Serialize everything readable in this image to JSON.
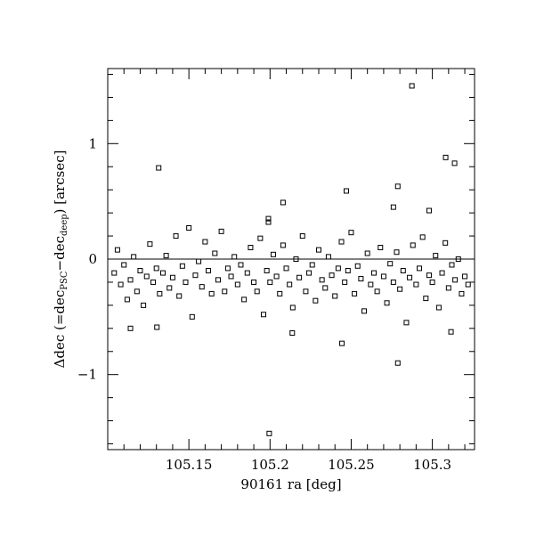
{
  "chart_data": {
    "type": "scatter",
    "xlabel": "90161 ra [deg]",
    "ylabel_parts": [
      "Δdec (=dec",
      "PSC",
      "−dec",
      "deep",
      ") [arcsec]"
    ],
    "xlim": [
      105.1,
      105.326
    ],
    "ylim": [
      -1.65,
      1.65
    ],
    "xticks": [
      105.15,
      105.2,
      105.25,
      105.3
    ],
    "yticks": [
      {
        "value": -1,
        "label": "−1"
      },
      0,
      1
    ],
    "xminorticks": [
      105.11,
      105.12,
      105.13,
      105.14,
      105.16,
      105.17,
      105.18,
      105.19,
      105.21,
      105.22,
      105.23,
      105.24,
      105.26,
      105.27,
      105.28,
      105.29,
      105.31,
      105.32
    ],
    "yminorticks": [
      -1.6,
      -1.4,
      -1.2,
      -0.8,
      -0.6,
      -0.4,
      -0.2,
      0.2,
      0.4,
      0.6,
      0.8,
      1.2,
      1.4,
      1.6
    ],
    "hline": 0,
    "color": "#000000",
    "x": [
      105.2874,
      105.1314,
      105.3082,
      105.3137,
      105.2787,
      105.247,
      105.208,
      105.199,
      105.199,
      105.298,
      105.276,
      105.1995,
      105.2787,
      105.2443,
      105.2137,
      105.3115,
      105.114,
      105.1303,
      105.104,
      105.106,
      105.108,
      105.11,
      105.112,
      105.114,
      105.116,
      105.118,
      105.12,
      105.122,
      105.124,
      105.126,
      105.128,
      105.13,
      105.132,
      105.134,
      105.136,
      105.138,
      105.14,
      105.142,
      105.144,
      105.146,
      105.148,
      105.15,
      105.152,
      105.154,
      105.156,
      105.158,
      105.16,
      105.162,
      105.164,
      105.166,
      105.168,
      105.17,
      105.172,
      105.174,
      105.176,
      105.178,
      105.18,
      105.182,
      105.184,
      105.186,
      105.188,
      105.19,
      105.192,
      105.194,
      105.196,
      105.198,
      105.2,
      105.202,
      105.204,
      105.206,
      105.208,
      105.21,
      105.212,
      105.214,
      105.216,
      105.218,
      105.22,
      105.222,
      105.224,
      105.226,
      105.228,
      105.23,
      105.232,
      105.234,
      105.236,
      105.238,
      105.24,
      105.242,
      105.244,
      105.246,
      105.248,
      105.25,
      105.252,
      105.254,
      105.256,
      105.258,
      105.26,
      105.262,
      105.264,
      105.266,
      105.268,
      105.27,
      105.272,
      105.274,
      105.276,
      105.278,
      105.28,
      105.282,
      105.284,
      105.286,
      105.288,
      105.29,
      105.292,
      105.294,
      105.296,
      105.298,
      105.3,
      105.302,
      105.304,
      105.306,
      105.308,
      105.31,
      105.312,
      105.314,
      105.316,
      105.318,
      105.32,
      105.322
    ],
    "values": [
      1.5,
      0.79,
      0.88,
      0.83,
      0.63,
      0.59,
      0.49,
      0.35,
      0.32,
      0.42,
      0.45,
      -1.51,
      -0.9,
      -0.73,
      -0.64,
      -0.63,
      -0.6,
      -0.59,
      -0.12,
      0.08,
      -0.22,
      -0.05,
      -0.35,
      -0.18,
      0.02,
      -0.28,
      -0.1,
      -0.4,
      -0.15,
      0.13,
      -0.2,
      -0.08,
      -0.3,
      -0.12,
      0.03,
      -0.25,
      -0.16,
      0.2,
      -0.32,
      -0.06,
      -0.2,
      0.27,
      -0.5,
      -0.14,
      -0.02,
      -0.24,
      0.15,
      -0.1,
      -0.3,
      0.05,
      -0.18,
      0.24,
      -0.28,
      -0.08,
      -0.15,
      0.02,
      -0.22,
      -0.05,
      -0.35,
      -0.12,
      0.1,
      -0.2,
      -0.28,
      0.18,
      -0.48,
      -0.1,
      -0.2,
      0.04,
      -0.15,
      -0.3,
      0.12,
      -0.08,
      -0.22,
      -0.42,
      0.0,
      -0.16,
      0.2,
      -0.28,
      -0.12,
      -0.05,
      -0.36,
      0.08,
      -0.18,
      -0.25,
      0.02,
      -0.14,
      -0.32,
      -0.08,
      0.15,
      -0.2,
      -0.1,
      0.23,
      -0.3,
      -0.06,
      -0.17,
      -0.45,
      0.05,
      -0.22,
      -0.12,
      -0.28,
      0.1,
      -0.15,
      -0.38,
      -0.04,
      -0.2,
      0.06,
      -0.26,
      -0.1,
      -0.55,
      -0.16,
      0.12,
      -0.22,
      -0.08,
      0.19,
      -0.34,
      -0.14,
      -0.2,
      0.03,
      -0.42,
      -0.12,
      0.14,
      -0.25,
      -0.05,
      -0.18,
      0.0,
      -0.3,
      -0.15,
      -0.22
    ]
  }
}
